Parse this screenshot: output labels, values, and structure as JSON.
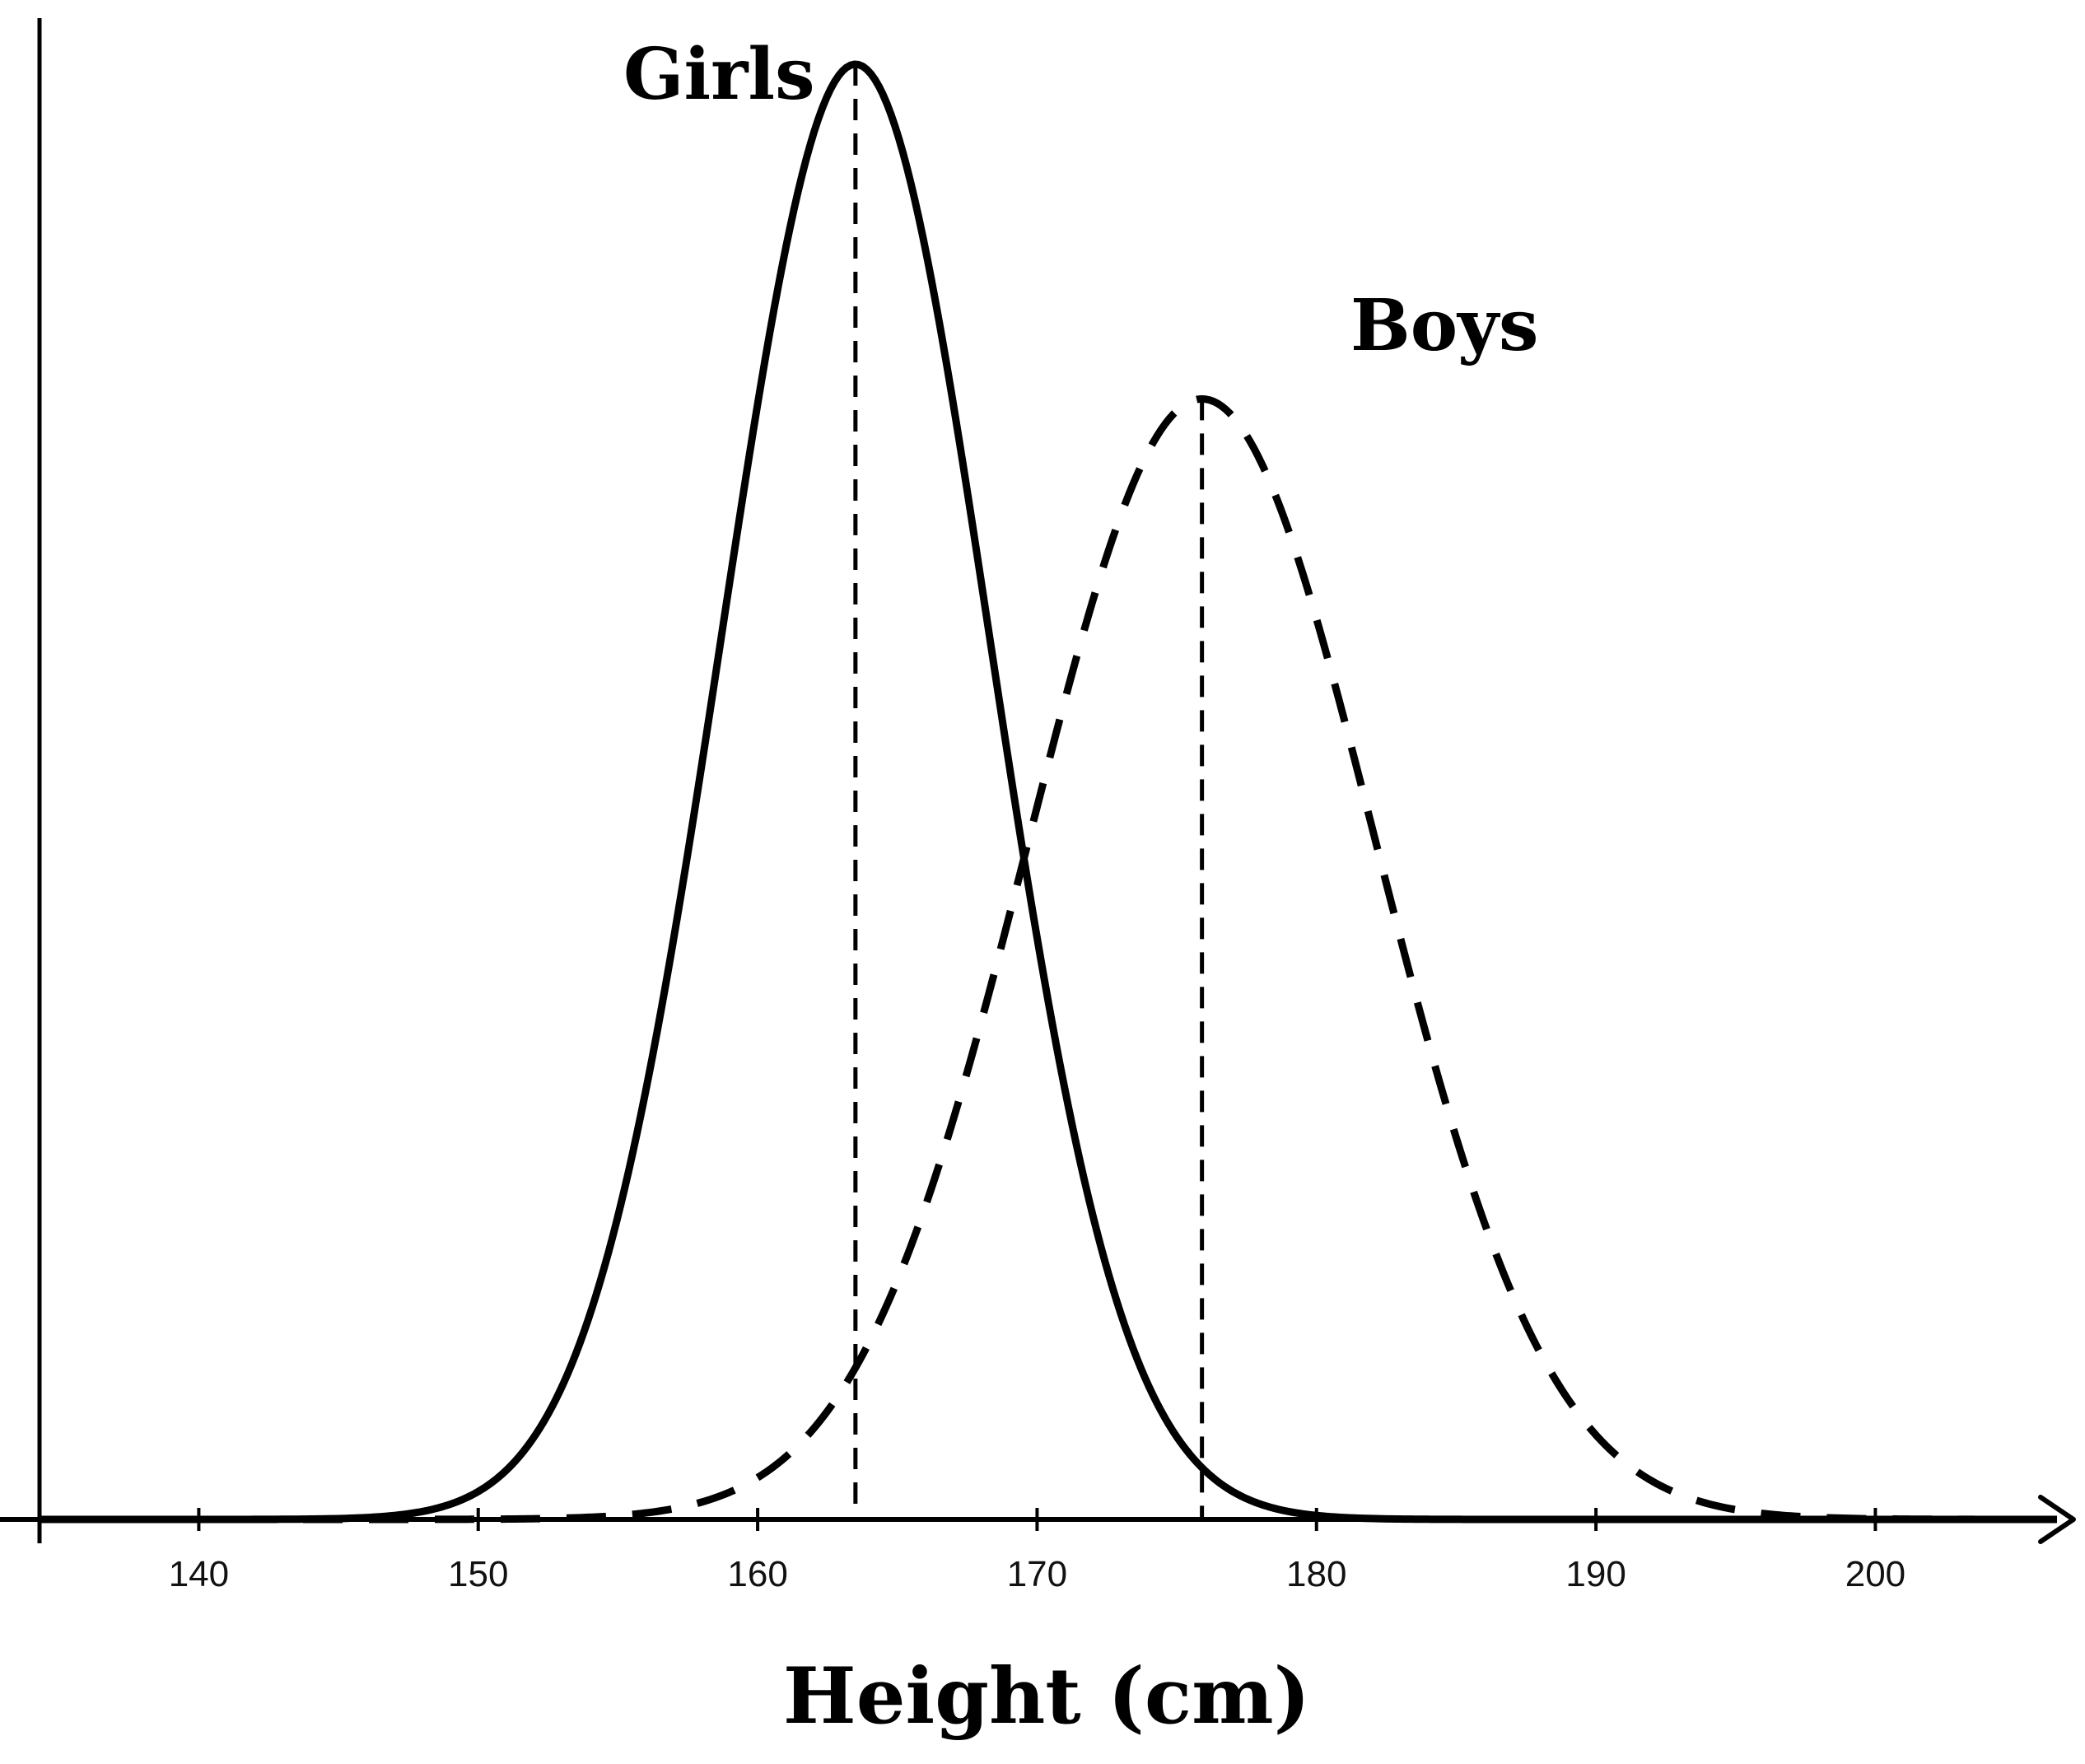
{
  "chart_data": {
    "type": "line",
    "xlabel": "Height (cm)",
    "ylabel": "",
    "xlim": [
      134.3,
      206.5
    ],
    "xticks": [
      140,
      150,
      160,
      170,
      180,
      190,
      200
    ],
    "grid": false,
    "legend": "none",
    "series": [
      {
        "name": "Girls",
        "style": "solid",
        "mean": 163.5,
        "sd": 4.8,
        "peak_height_relative": 1.0
      },
      {
        "name": "Boys",
        "style": "dashed",
        "mean": 175.9,
        "sd": 6.2,
        "peak_height_relative": 0.77
      }
    ],
    "mean_markers": [
      {
        "series": "Girls",
        "x": 163.5,
        "style": "dashed"
      },
      {
        "series": "Boys",
        "x": 175.9,
        "style": "dashed"
      }
    ]
  }
}
